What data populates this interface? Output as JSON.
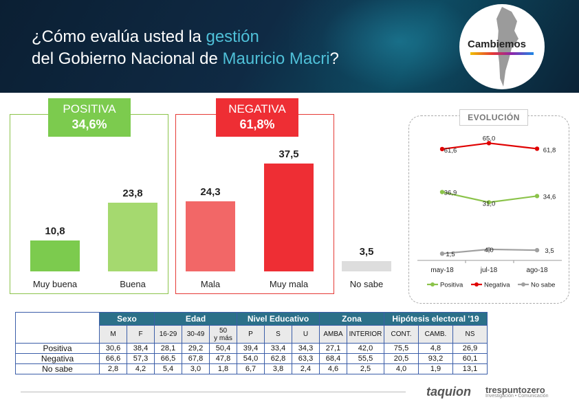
{
  "header": {
    "title_line1_a": "¿Cómo evalúa usted la ",
    "title_line1_b": "gestión",
    "title_line2_a": "del Gobierno Nacional de ",
    "title_line2_b": "Mauricio Macri",
    "title_line2_c": "?",
    "logo_text": "Cambiemos"
  },
  "colors": {
    "positive": "#7ccb4e",
    "positive_light": "#a5d96f",
    "negative": "#ee2e34",
    "negative_light": "#f26767",
    "nosabe": "#dddddd",
    "table_header": "#2b7089",
    "evo_pos": "#8bc34a",
    "evo_neg": "#e00000",
    "evo_ns": "#a0a0a0"
  },
  "badges": {
    "positive_label": "POSITIVA",
    "positive_value": "34,6%",
    "negative_label": "NEGATIVA",
    "negative_value": "61,8%"
  },
  "chart_data": [
    {
      "type": "bar",
      "categories": [
        "Muy buena",
        "Buena",
        "Mala",
        "Muy mala",
        "No sabe"
      ],
      "values": [
        10.8,
        23.8,
        24.3,
        37.5,
        3.5
      ],
      "labels": [
        "10,8",
        "23,8",
        "24,3",
        "37,5",
        "3,5"
      ],
      "ylim": [
        0,
        40
      ],
      "group_labels": [
        "POSITIVA 34,6%",
        "NEGATIVA 61,8%"
      ]
    },
    {
      "type": "line",
      "title": "EVOLUCIÓN",
      "x": [
        "may-18",
        "jul-18",
        "ago-18"
      ],
      "ylim": [
        0,
        75
      ],
      "series": [
        {
          "name": "Positiva",
          "values": [
            36.9,
            31.0,
            34.6
          ],
          "labels": [
            "36,9",
            "31,0",
            "34,6"
          ]
        },
        {
          "name": "Negativa",
          "values": [
            61.6,
            65.0,
            61.8
          ],
          "labels": [
            "61,6",
            "65,0",
            "61,8"
          ]
        },
        {
          "name": "No sabe",
          "values": [
            1.5,
            4.0,
            3.5
          ],
          "labels": [
            "1,5",
            "4,0",
            "3,5"
          ]
        }
      ],
      "legend": "bottom",
      "grid": false
    }
  ],
  "table": {
    "groups": [
      {
        "label": "Sexo",
        "cols": [
          "M",
          "F"
        ]
      },
      {
        "label": "Edad",
        "cols": [
          "16-29",
          "30-49",
          "50\ny más"
        ]
      },
      {
        "label": "Nivel Educativo",
        "cols": [
          "P",
          "S",
          "U"
        ]
      },
      {
        "label": "Zona",
        "cols": [
          "AMBA",
          "INTERIOR"
        ]
      },
      {
        "label": "Hipótesis electoral '19",
        "cols": [
          "CONT.",
          "CAMB.",
          "NS"
        ]
      }
    ],
    "rows": [
      {
        "label": "Positiva",
        "values": [
          "30,6",
          "38,4",
          "28,1",
          "29,2",
          "50,4",
          "39,4",
          "33,4",
          "34,3",
          "27,1",
          "42,0",
          "75,5",
          "4,8",
          "26,9"
        ]
      },
      {
        "label": "Negativa",
        "values": [
          "66,6",
          "57,3",
          "66,5",
          "67,8",
          "47,8",
          "54,0",
          "62,8",
          "63,3",
          "68,4",
          "55,5",
          "20,5",
          "93,2",
          "60,1"
        ]
      },
      {
        "label": "No sabe",
        "values": [
          "2,8",
          "4,2",
          "5,4",
          "3,0",
          "1,8",
          "6,7",
          "3,8",
          "2,4",
          "4,6",
          "2,5",
          "4,0",
          "1,9",
          "13,1"
        ]
      }
    ]
  },
  "footer": {
    "brand1": "taquion",
    "brand2": "trespuntozero",
    "brand2_sub": "Investigación • Comunicación"
  }
}
